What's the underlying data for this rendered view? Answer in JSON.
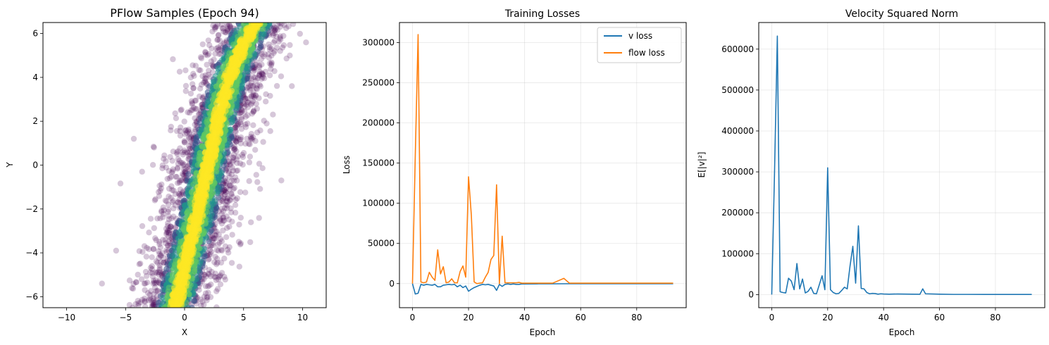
{
  "chart_data": [
    {
      "type": "scatter",
      "title": "PFlow Samples (Epoch 94)",
      "xlabel": "X",
      "ylabel": "Y",
      "xlim": [
        -12,
        12
      ],
      "ylim": [
        -6.5,
        6.5
      ],
      "xticks": [
        -10,
        -5,
        0,
        5,
        10
      ],
      "yticks": [
        -6,
        -4,
        -2,
        0,
        2,
        4,
        6
      ],
      "xtick_labels": [
        "−10",
        "−5",
        "0",
        "5",
        "10"
      ],
      "ytick_labels": [
        "−6",
        "−4",
        "−2",
        "0",
        "2",
        "4",
        "6"
      ],
      "grid": false,
      "colormap": "viridis",
      "density_ridge": [
        [
          -0.8,
          -6.5
        ],
        [
          0.3,
          -4.0
        ],
        [
          1.2,
          -2.0
        ],
        [
          2.0,
          0.0
        ],
        [
          2.8,
          2.0
        ],
        [
          3.8,
          4.0
        ],
        [
          5.0,
          5.5
        ],
        [
          6.0,
          6.5
        ]
      ],
      "outliers": [
        [
          -4.3,
          1.2
        ],
        [
          8.2,
          -0.7
        ],
        [
          -7.0,
          -5.4
        ],
        [
          6.0,
          1.1
        ],
        [
          -3.6,
          -0.3
        ],
        [
          -5.8,
          -3.9
        ]
      ],
      "colors": [
        "#440154",
        "#3b528b",
        "#21918c",
        "#5ec962",
        "#fde725"
      ]
    },
    {
      "type": "line",
      "title": "Training Losses",
      "xlabel": "Epoch",
      "ylabel": "Loss",
      "xlim": [
        -4.65,
        97.65
      ],
      "ylim": [
        -30000,
        325000
      ],
      "xticks": [
        0,
        20,
        40,
        60,
        80
      ],
      "yticks": [
        0,
        50000,
        100000,
        150000,
        200000,
        250000,
        300000
      ],
      "ytick_labels": [
        "0",
        "50000",
        "100000",
        "150000",
        "200000",
        "250000",
        "300000"
      ],
      "grid": true,
      "legend": "top-right",
      "series": [
        {
          "name": "v loss",
          "color": "#1f77b4",
          "x": [
            0,
            1,
            2,
            3,
            4,
            5,
            6,
            7,
            8,
            9,
            10,
            11,
            12,
            13,
            14,
            15,
            16,
            17,
            18,
            19,
            20,
            21,
            22,
            23,
            24,
            25,
            26,
            27,
            28,
            29,
            30,
            31,
            32,
            33,
            34,
            35,
            36,
            37,
            38,
            39,
            40,
            45,
            50,
            55,
            60,
            70,
            80,
            93
          ],
          "values": [
            0,
            -13000,
            -12000,
            -1000,
            -2000,
            -1000,
            -1500,
            -2000,
            -1000,
            -4000,
            -4000,
            -2000,
            -1500,
            -1000,
            -1500,
            -1000,
            -4000,
            -2000,
            -5000,
            -3000,
            -9500,
            -7000,
            -5000,
            -3500,
            -2000,
            -1000,
            -1500,
            -1000,
            -2000,
            -3000,
            -8500,
            -1000,
            -3500,
            -1000,
            -500,
            -1000,
            -500,
            -1000,
            -1000,
            -500,
            -500,
            -300,
            -300,
            -200,
            -200,
            -200,
            -200,
            -200
          ]
        },
        {
          "name": "flow loss",
          "color": "#ff7f0e",
          "x": [
            0,
            1,
            2,
            3,
            4,
            5,
            6,
            7,
            8,
            9,
            10,
            11,
            12,
            13,
            14,
            15,
            16,
            17,
            18,
            19,
            20,
            21,
            22,
            23,
            24,
            25,
            26,
            27,
            28,
            29,
            30,
            31,
            32,
            33,
            34,
            35,
            36,
            37,
            38,
            39,
            40,
            45,
            50,
            54,
            56,
            60,
            70,
            80,
            93
          ],
          "values": [
            0,
            160000,
            310000,
            2000,
            1000,
            2000,
            14000,
            8000,
            4000,
            42000,
            12000,
            21000,
            1000,
            2000,
            6000,
            1000,
            1000,
            15000,
            22000,
            8000,
            133000,
            85000,
            2000,
            0,
            500,
            1000,
            8000,
            14000,
            30000,
            35000,
            123000,
            0,
            59000,
            1000,
            1000,
            1000,
            1000,
            1000,
            1500,
            500,
            500,
            500,
            500,
            6500,
            500,
            500,
            500,
            500,
            500
          ]
        }
      ]
    },
    {
      "type": "line",
      "title": "Velocity Squared Norm",
      "xlabel": "Epoch",
      "ylabel": "E[|v|²]",
      "xlim": [
        -4.65,
        97.65
      ],
      "ylim": [
        -32000,
        665000
      ],
      "xticks": [
        0,
        20,
        40,
        60,
        80
      ],
      "yticks": [
        0,
        100000,
        200000,
        300000,
        400000,
        500000,
        600000
      ],
      "ytick_labels": [
        "0",
        "100000",
        "200000",
        "300000",
        "400000",
        "500000",
        "600000"
      ],
      "grid": true,
      "series": [
        {
          "color": "#1f77b4",
          "x": [
            0,
            1,
            2,
            3,
            4,
            5,
            6,
            7,
            8,
            9,
            10,
            11,
            12,
            13,
            14,
            15,
            16,
            17,
            18,
            19,
            20,
            21,
            22,
            23,
            24,
            25,
            26,
            27,
            28,
            29,
            30,
            31,
            32,
            33,
            34,
            35,
            36,
            37,
            38,
            39,
            40,
            42,
            45,
            50,
            53,
            54,
            55,
            60,
            65,
            70,
            80,
            93
          ],
          "values": [
            0,
            300000,
            632000,
            7000,
            5000,
            4000,
            40000,
            33000,
            12000,
            76000,
            14000,
            38000,
            4000,
            8000,
            18000,
            3000,
            2000,
            24000,
            46000,
            12000,
            310000,
            12000,
            5000,
            2000,
            3000,
            10000,
            18000,
            14000,
            70000,
            118000,
            28000,
            168000,
            15000,
            14000,
            5000,
            2000,
            3000,
            2500,
            1000,
            2000,
            1500,
            1000,
            1500,
            1000,
            800,
            14000,
            2000,
            1000,
            500,
            500,
            300,
            300
          ]
        }
      ]
    }
  ]
}
